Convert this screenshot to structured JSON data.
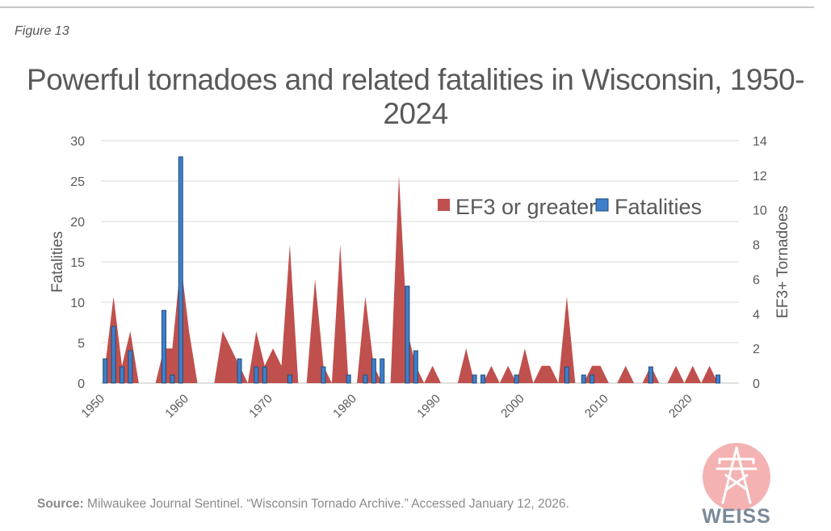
{
  "figure_label": "Figure 13",
  "source": {
    "label": "Source:",
    "text": "Milwaukee Journal Sentinel. “Wisconsin Tornado Archive.” Accessed January 12, 2026."
  },
  "logo": {
    "text": "WEISS",
    "icon": "power-tower-icon"
  },
  "colors": {
    "ef3": "#c0504d",
    "fatalities": "#3f7ec9",
    "fatalities_edge": "#1f4e79",
    "grid": "#d9d9d9",
    "text": "#595959"
  },
  "chart_data": {
    "type": "bar",
    "title": "Powerful tornadoes and related fatalities in Wisconsin, 1950-2024",
    "xlabel": "",
    "x": [
      1950,
      1951,
      1952,
      1953,
      1954,
      1955,
      1956,
      1957,
      1958,
      1959,
      1960,
      1961,
      1962,
      1963,
      1964,
      1965,
      1966,
      1967,
      1968,
      1969,
      1970,
      1971,
      1972,
      1973,
      1974,
      1975,
      1976,
      1977,
      1978,
      1979,
      1980,
      1981,
      1982,
      1983,
      1984,
      1985,
      1986,
      1987,
      1988,
      1989,
      1990,
      1991,
      1992,
      1993,
      1994,
      1995,
      1996,
      1997,
      1998,
      1999,
      2000,
      2001,
      2002,
      2003,
      2004,
      2005,
      2006,
      2007,
      2008,
      2009,
      2010,
      2011,
      2012,
      2013,
      2014,
      2015,
      2016,
      2017,
      2018,
      2019,
      2020,
      2021,
      2022,
      2023,
      2024
    ],
    "x_tick_labels": [
      "1950",
      "1960",
      "1970",
      "1980",
      "1990",
      "2000",
      "2010",
      "2020"
    ],
    "x_tick_years": [
      1950,
      1960,
      1970,
      1980,
      1990,
      2000,
      2010,
      2020
    ],
    "y_left": {
      "label": "Fatalities",
      "ylim": [
        0,
        30
      ],
      "ticks": [
        "0",
        "5",
        "10",
        "15",
        "20",
        "25",
        "30"
      ]
    },
    "y_right": {
      "label": "EF3+ Tornadoes",
      "ylim": [
        0,
        14
      ],
      "ticks": [
        "0",
        "2",
        "4",
        "6",
        "8",
        "10",
        "12",
        "14"
      ]
    },
    "legend_position": "top-right",
    "grid": true,
    "series": [
      {
        "name": "EF3 or greater",
        "type": "area",
        "axis": "right",
        "values": [
          1,
          5,
          1,
          3,
          0,
          0,
          0,
          2,
          2,
          7,
          3,
          0,
          0,
          0,
          3,
          2,
          1,
          0,
          3,
          1,
          2,
          1,
          8,
          0,
          0,
          6,
          1,
          0,
          8,
          0,
          0,
          5,
          1,
          0,
          0,
          12,
          3,
          1,
          0,
          1,
          0,
          0,
          0,
          2,
          0,
          0,
          1,
          0,
          1,
          0,
          2,
          0,
          1,
          1,
          0,
          5,
          0,
          0,
          1,
          1,
          0,
          0,
          1,
          0,
          0,
          1,
          0,
          0,
          1,
          0,
          1,
          0,
          1,
          0,
          0
        ]
      },
      {
        "name": "Fatalities",
        "type": "bar",
        "axis": "left",
        "values": [
          3,
          7,
          2,
          4,
          0,
          0,
          0,
          9,
          1,
          28,
          0,
          0,
          0,
          0,
          0,
          0,
          3,
          0,
          2,
          2,
          0,
          0,
          1,
          0,
          0,
          0,
          2,
          0,
          0,
          1,
          0,
          1,
          3,
          3,
          0,
          0,
          12,
          4,
          0,
          0,
          0,
          0,
          0,
          0,
          1,
          1,
          0,
          0,
          0,
          1,
          0,
          0,
          0,
          0,
          0,
          2,
          0,
          1,
          1,
          0,
          0,
          0,
          0,
          0,
          0,
          2,
          0,
          0,
          0,
          0,
          0,
          0,
          0,
          1,
          0
        ]
      }
    ]
  }
}
